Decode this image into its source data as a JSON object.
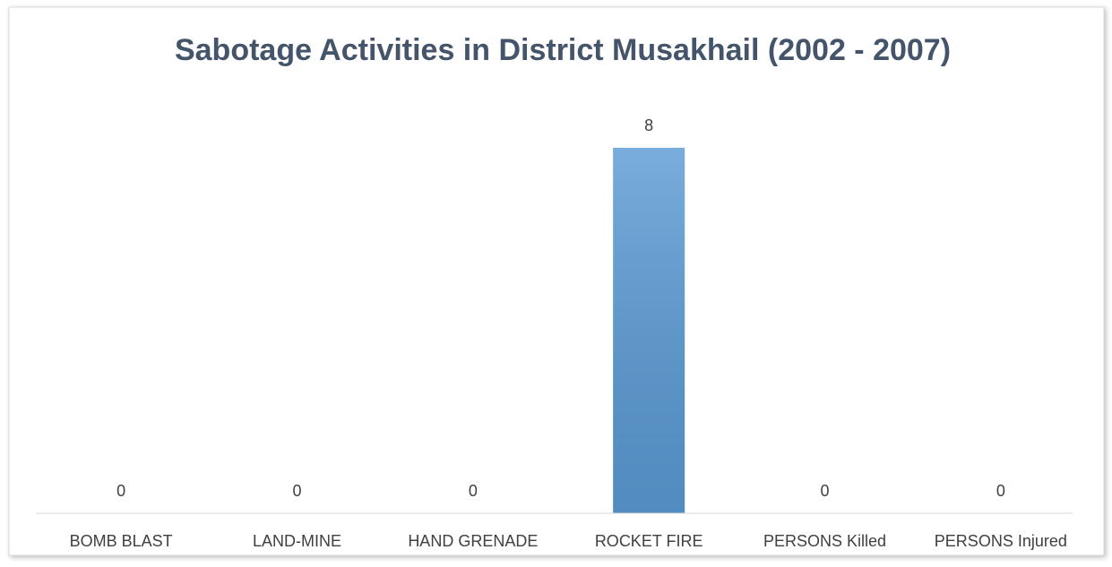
{
  "chart_data": {
    "type": "bar",
    "title": "Sabotage Activities in District Musakhail (2002 - 2007)",
    "categories": [
      "BOMB BLAST",
      "LAND-MINE",
      "HAND GRENADE",
      "ROCKET FIRE",
      "PERSONS Killed",
      "PERSONS Injured"
    ],
    "values": [
      0,
      0,
      0,
      8,
      0,
      0
    ],
    "color": "#5b9bd5",
    "ylim": [
      0,
      9
    ],
    "data_labels": true
  }
}
